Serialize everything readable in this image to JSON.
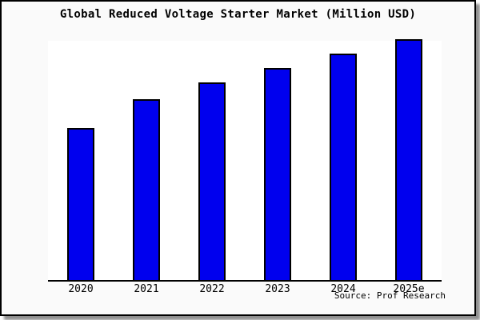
{
  "frame": {
    "source_label": "Source: Prof Research"
  },
  "colors": {
    "frame_background": "#fafafa",
    "plot_background": "#ffffff",
    "bar_fill": "#0000ee",
    "bar_border": "#000000",
    "axis": "#000000",
    "border": "#000000",
    "shadow": "#8f8f8f",
    "text": "#000000"
  },
  "chart_data": {
    "type": "bar",
    "title": "Global Reduced Voltage Starter Market (Million USD)",
    "categories": [
      "2020",
      "2021",
      "2022",
      "2023",
      "2024",
      "2025e"
    ],
    "values": [
      63,
      75,
      82,
      88,
      94,
      100
    ],
    "value_scale_note": "no y-axis ticks or data labels shown; values estimated as relative bar heights with tallest bar (2025e) = 100",
    "xlabel": "",
    "ylabel": "",
    "ylim": [
      0,
      100
    ],
    "grid": false,
    "legend": null,
    "annotations": [
      "Source: Prof Research"
    ],
    "bar_color": "#0000ee"
  }
}
